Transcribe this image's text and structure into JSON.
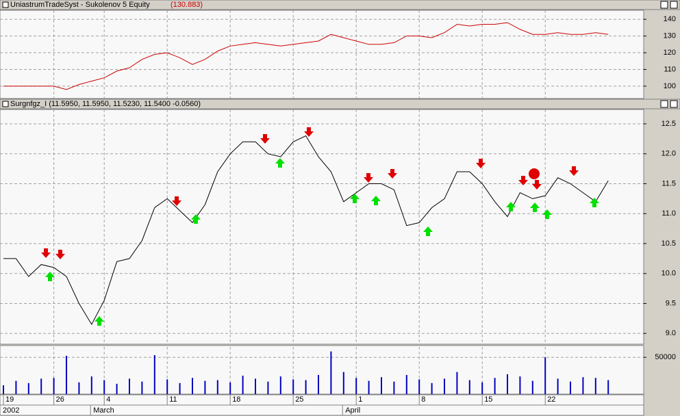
{
  "chart_data": [
    {
      "type": "line",
      "title": "UniastrumTradeSyst - Sukolenov 5 Equity",
      "title_value": "(130.883)",
      "color": "#cc0000",
      "values": [
        100,
        100,
        100,
        100,
        100,
        98,
        101,
        103,
        105,
        109,
        111,
        116,
        119,
        120,
        117,
        113,
        116,
        121,
        124,
        125,
        126,
        125,
        124,
        125,
        126,
        127,
        131,
        129,
        127,
        125,
        125,
        126,
        130,
        130,
        129,
        132,
        137,
        136,
        137,
        137,
        138,
        134,
        131,
        131,
        132,
        131,
        131,
        132,
        131
      ],
      "ylim": [
        92.6,
        145.4
      ],
      "yticks": [
        100,
        110,
        120,
        130,
        140
      ],
      "grid": true
    },
    {
      "type": "line",
      "title": "Surgnfgz_I (11.5950, 11.5950, 11.5230, 11.5400 -0.0560)",
      "color": "#000000",
      "values": [
        10.25,
        10.25,
        9.95,
        10.15,
        10.1,
        9.95,
        9.5,
        9.15,
        9.55,
        10.2,
        10.25,
        10.55,
        11.1,
        11.25,
        11.05,
        10.85,
        11.15,
        11.7,
        12.0,
        12.2,
        12.2,
        12.0,
        11.95,
        12.2,
        12.3,
        11.95,
        11.7,
        11.2,
        11.35,
        11.5,
        11.5,
        11.4,
        10.8,
        10.85,
        11.1,
        11.25,
        11.7,
        11.7,
        11.5,
        11.2,
        10.95,
        11.35,
        11.25,
        11.3,
        11.6,
        11.5,
        11.35,
        11.2,
        11.55
      ],
      "ylim": [
        8.82,
        12.74
      ],
      "yticks": [
        {
          "value": 9,
          "label": "9.0"
        },
        9.5,
        {
          "value": 10,
          "label": "10.0"
        },
        10.5,
        {
          "value": 11,
          "label": "11.0"
        },
        11.5,
        {
          "value": 12,
          "label": "12.0"
        },
        12.5
      ],
      "grid": true
    },
    {
      "type": "bar",
      "color": "#0000c0",
      "categories": [
        "19",
        null,
        null,
        null,
        "26",
        null,
        null,
        null,
        "4",
        null,
        null,
        null,
        null,
        "11",
        null,
        null,
        null,
        null,
        "18",
        null,
        null,
        null,
        null,
        "25",
        null,
        null,
        null,
        null,
        "1",
        null,
        null,
        null,
        null,
        "8",
        null,
        null,
        null,
        null,
        "15",
        null,
        null,
        null,
        null,
        "22",
        null,
        null,
        null,
        null,
        null
      ],
      "months": [
        "2002",
        null,
        null,
        null,
        null,
        null,
        null,
        null,
        "March",
        null,
        null,
        null,
        null,
        null,
        null,
        null,
        null,
        null,
        null,
        null,
        null,
        null,
        null,
        null,
        null,
        null,
        null,
        null,
        "April",
        null,
        null,
        null,
        null,
        null,
        null,
        null,
        null,
        null,
        null,
        null,
        null,
        null,
        null,
        null,
        null,
        null,
        null,
        null,
        null
      ],
      "values": [
        12000,
        18000,
        15000,
        21000,
        22000,
        52000,
        16000,
        24000,
        19000,
        14000,
        21000,
        17000,
        53000,
        20000,
        15000,
        22000,
        18000,
        19000,
        16000,
        25000,
        21000,
        17000,
        24000,
        20000,
        19000,
        26000,
        58000,
        30000,
        22000,
        18000,
        23000,
        17000,
        26000,
        20000,
        15000,
        21000,
        30000,
        19000,
        16000,
        22000,
        27000,
        24000,
        18000,
        50000,
        21000,
        17000,
        23000,
        22000,
        19000
      ],
      "ylim": [
        0,
        64150
      ],
      "yticks": [
        50000
      ],
      "grid": true
    }
  ]
}
